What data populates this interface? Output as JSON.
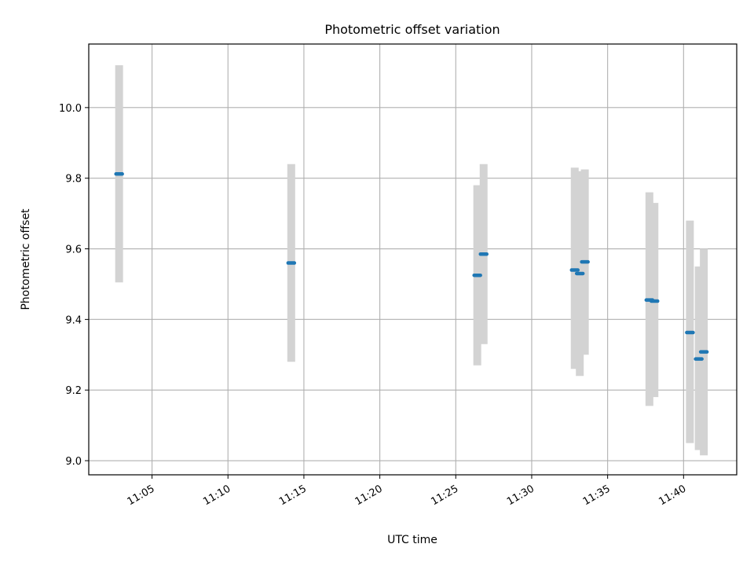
{
  "chart_data": {
    "type": "scatter",
    "title": "Photometric offset variation",
    "xlabel": "UTC time",
    "ylabel": "Photometric offset",
    "grid": true,
    "xlim": [
      "11:00:50",
      "11:43:30"
    ],
    "ylim": [
      8.96,
      10.18
    ],
    "x_ticks": [
      "11:05",
      "11:10",
      "11:15",
      "11:20",
      "11:25",
      "11:30",
      "11:35",
      "11:40"
    ],
    "y_ticks": [
      "9.0",
      "9.2",
      "9.4",
      "9.6",
      "9.8",
      "10.0"
    ],
    "error_color": "#d3d3d3",
    "point_color": "#1f77b4",
    "points": [
      {
        "x": "11:02:50",
        "y": 9.812,
        "err_low": 9.505,
        "err_high": 10.12
      },
      {
        "x": "11:14:10",
        "y": 9.56,
        "err_low": 9.28,
        "err_high": 9.84
      },
      {
        "x": "11:26:25",
        "y": 9.525,
        "err_low": 9.27,
        "err_high": 9.78
      },
      {
        "x": "11:26:50",
        "y": 9.585,
        "err_low": 9.33,
        "err_high": 9.84
      },
      {
        "x": "11:32:50",
        "y": 9.54,
        "err_low": 9.26,
        "err_high": 9.83
      },
      {
        "x": "11:33:10",
        "y": 9.53,
        "err_low": 9.24,
        "err_high": 9.82
      },
      {
        "x": "11:33:30",
        "y": 9.563,
        "err_low": 9.3,
        "err_high": 9.825
      },
      {
        "x": "11:37:45",
        "y": 9.455,
        "err_low": 9.155,
        "err_high": 9.76
      },
      {
        "x": "11:38:05",
        "y": 9.452,
        "err_low": 9.18,
        "err_high": 9.73
      },
      {
        "x": "11:40:25",
        "y": 9.363,
        "err_low": 9.05,
        "err_high": 9.68
      },
      {
        "x": "11:41:00",
        "y": 9.288,
        "err_low": 9.03,
        "err_high": 9.55
      },
      {
        "x": "11:41:20",
        "y": 9.308,
        "err_low": 9.015,
        "err_high": 9.6
      }
    ]
  }
}
